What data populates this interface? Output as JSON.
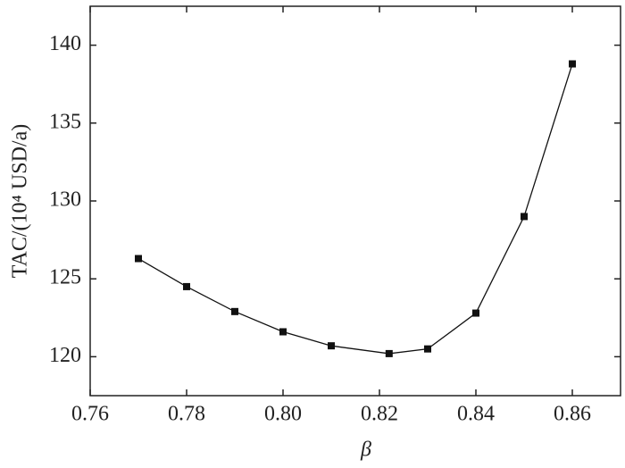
{
  "chart_data": {
    "type": "line",
    "x_label": "β",
    "y_label": "TAC/(10⁴ USD/a)",
    "x": [
      0.77,
      0.78,
      0.79,
      0.8,
      0.81,
      0.822,
      0.83,
      0.84,
      0.85,
      0.86
    ],
    "series": [
      {
        "name": "TAC",
        "color": "#111111",
        "values": [
          126.3,
          124.5,
          122.9,
          121.6,
          120.7,
          120.2,
          120.5,
          122.8,
          129.0,
          138.8
        ]
      }
    ],
    "xlim": [
      0.76,
      0.87
    ],
    "ylim": [
      117.5,
      142.5
    ],
    "xticks": [
      0.76,
      0.78,
      {
        "value": 0.8,
        "label": "0.80"
      },
      0.82,
      0.84,
      0.86
    ],
    "yticks": [
      120,
      125,
      130,
      135,
      140
    ],
    "grid": false
  }
}
